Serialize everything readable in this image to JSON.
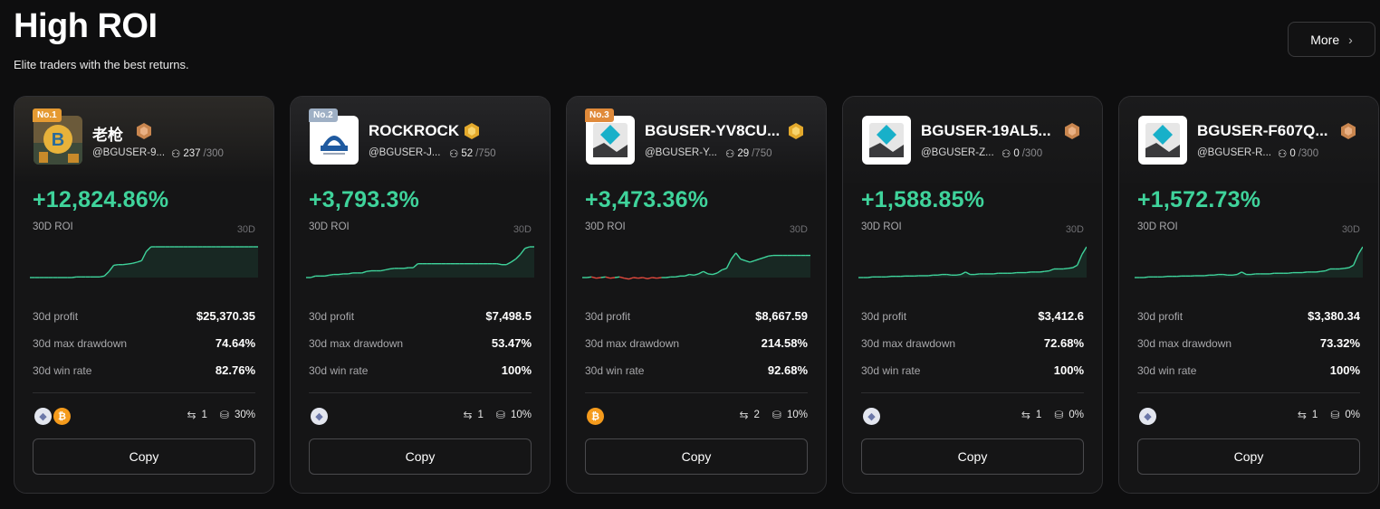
{
  "page": {
    "title": "High ROI",
    "subtitle": "Elite traders with the best returns.",
    "more_label": "More"
  },
  "colors": {
    "positive": "#3fd39b",
    "negative": "#e2483d",
    "background": "#0e0e0f",
    "card": "#151516"
  },
  "traders": [
    {
      "rank": "No.1",
      "name": "老枪",
      "handle": "@BGUSER-9...",
      "followers": "237",
      "followers_max": "/300",
      "badge": "bronze-badge-icon",
      "roi": "+12,824.86%",
      "roi_label": "30D ROI",
      "period": "30D",
      "profit_label": "30d profit",
      "profit": "$25,370.35",
      "drawdown_label": "30d max drawdown",
      "drawdown": "74.64%",
      "winrate_label": "30d win rate",
      "winrate": "82.76%",
      "coins": [
        "eth",
        "btc"
      ],
      "pairs": "1",
      "share": "30%",
      "copy_label": "Copy",
      "spark": [
        0,
        0,
        0,
        0,
        0,
        0,
        0,
        0,
        0,
        0,
        0.02,
        0.02,
        0.02,
        0.02,
        0.02,
        0.02,
        0.05,
        0.2,
        0.4,
        0.42,
        0.42,
        0.44,
        0.46,
        0.5,
        0.55,
        0.85,
        1,
        1,
        1,
        1,
        1,
        1,
        1,
        1,
        1,
        1,
        1,
        1,
        1,
        1,
        1,
        1,
        1,
        1,
        1,
        1,
        1,
        1,
        1,
        1
      ]
    },
    {
      "rank": "No.2",
      "name": "ROCKROCK",
      "handle": "@BGUSER-J...",
      "followers": "52",
      "followers_max": "/750",
      "badge": "gold-badge-icon",
      "roi": "+3,793.3%",
      "roi_label": "30D ROI",
      "period": "30D",
      "profit_label": "30d profit",
      "profit": "$7,498.5",
      "drawdown_label": "30d max drawdown",
      "drawdown": "53.47%",
      "winrate_label": "30d win rate",
      "winrate": "100%",
      "coins": [
        "eth"
      ],
      "pairs": "1",
      "share": "10%",
      "copy_label": "Copy",
      "spark": [
        0,
        0,
        0.05,
        0.05,
        0.05,
        0.08,
        0.1,
        0.1,
        0.12,
        0.12,
        0.15,
        0.15,
        0.15,
        0.2,
        0.22,
        0.22,
        0.22,
        0.25,
        0.28,
        0.3,
        0.3,
        0.3,
        0.32,
        0.32,
        0.45,
        0.45,
        0.45,
        0.45,
        0.45,
        0.45,
        0.45,
        0.45,
        0.45,
        0.45,
        0.45,
        0.45,
        0.45,
        0.45,
        0.45,
        0.45,
        0.45,
        0.45,
        0.42,
        0.42,
        0.5,
        0.6,
        0.75,
        0.95,
        1,
        1
      ]
    },
    {
      "rank": "No.3",
      "name": "BGUSER-YV8CU...",
      "handle": "@BGUSER-Y...",
      "followers": "29",
      "followers_max": "/750",
      "badge": "gold-badge-icon",
      "roi": "+3,473.36%",
      "roi_label": "30D ROI",
      "period": "30D",
      "profit_label": "30d profit",
      "profit": "$8,667.59",
      "drawdown_label": "30d max drawdown",
      "drawdown": "214.58%",
      "winrate_label": "30d win rate",
      "winrate": "92.68%",
      "coins": [
        "btc"
      ],
      "pairs": "2",
      "share": "10%",
      "copy_label": "Copy",
      "spark": [
        0,
        0,
        0.02,
        -0.02,
        0,
        0.02,
        -0.02,
        0,
        0.02,
        -0.02,
        -0.05,
        0,
        -0.02,
        0,
        -0.04,
        0,
        -0.02,
        0,
        0,
        0.02,
        0.02,
        0.05,
        0.05,
        0.1,
        0.08,
        0.12,
        0.2,
        0.12,
        0.1,
        0.15,
        0.25,
        0.3,
        0.6,
        0.8,
        0.6,
        0.55,
        0.5,
        0.55,
        0.6,
        0.65,
        0.7,
        0.72,
        0.72,
        0.72,
        0.72,
        0.72,
        0.72,
        0.72,
        0.72,
        0.72
      ]
    },
    {
      "rank": "",
      "name": "BGUSER-19AL5...",
      "handle": "@BGUSER-Z...",
      "followers": "0",
      "followers_max": "/300",
      "badge": "bronze-badge-icon",
      "roi": "+1,588.85%",
      "roi_label": "30D ROI",
      "period": "30D",
      "profit_label": "30d profit",
      "profit": "$3,412.6",
      "drawdown_label": "30d max drawdown",
      "drawdown": "72.68%",
      "winrate_label": "30d win rate",
      "winrate": "100%",
      "coins": [
        "eth"
      ],
      "pairs": "1",
      "share": "0%",
      "copy_label": "Copy",
      "spark": [
        0,
        0,
        0,
        0.02,
        0.02,
        0.02,
        0.02,
        0.04,
        0.04,
        0.04,
        0.05,
        0.05,
        0.05,
        0.06,
        0.06,
        0.06,
        0.08,
        0.08,
        0.1,
        0.1,
        0.08,
        0.08,
        0.1,
        0.18,
        0.1,
        0.1,
        0.12,
        0.12,
        0.12,
        0.12,
        0.14,
        0.14,
        0.14,
        0.14,
        0.16,
        0.16,
        0.16,
        0.18,
        0.18,
        0.18,
        0.2,
        0.22,
        0.28,
        0.28,
        0.28,
        0.3,
        0.32,
        0.4,
        0.75,
        1
      ]
    },
    {
      "rank": "",
      "name": "BGUSER-F607Q...",
      "handle": "@BGUSER-R...",
      "followers": "0",
      "followers_max": "/300",
      "badge": "bronze-badge-icon",
      "roi": "+1,572.73%",
      "roi_label": "30D ROI",
      "period": "30D",
      "profit_label": "30d profit",
      "profit": "$3,380.34",
      "drawdown_label": "30d max drawdown",
      "drawdown": "73.32%",
      "winrate_label": "30d win rate",
      "winrate": "100%",
      "coins": [
        "eth"
      ],
      "pairs": "1",
      "share": "0%",
      "copy_label": "Copy",
      "spark": [
        0,
        0,
        0,
        0.02,
        0.02,
        0.02,
        0.02,
        0.04,
        0.04,
        0.04,
        0.05,
        0.05,
        0.05,
        0.06,
        0.06,
        0.06,
        0.08,
        0.08,
        0.1,
        0.1,
        0.08,
        0.08,
        0.1,
        0.18,
        0.1,
        0.1,
        0.12,
        0.12,
        0.12,
        0.12,
        0.14,
        0.14,
        0.14,
        0.14,
        0.16,
        0.16,
        0.16,
        0.18,
        0.18,
        0.18,
        0.2,
        0.22,
        0.28,
        0.28,
        0.28,
        0.3,
        0.32,
        0.4,
        0.75,
        1
      ]
    }
  ]
}
